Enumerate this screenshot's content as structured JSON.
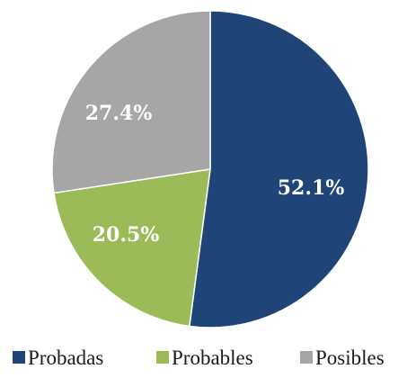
{
  "chart_data": {
    "type": "pie",
    "title": "",
    "categories": [
      "Probadas",
      "Probables",
      "Posibles"
    ],
    "values": [
      52.1,
      20.5,
      27.4
    ],
    "labels": [
      "52.1%",
      "20.5%",
      "27.4%"
    ],
    "colors": [
      "#1f4477",
      "#9bbb59",
      "#a6a6a6"
    ],
    "start_angle_deg": 0,
    "direction": "clockwise",
    "legend_position": "bottom"
  }
}
